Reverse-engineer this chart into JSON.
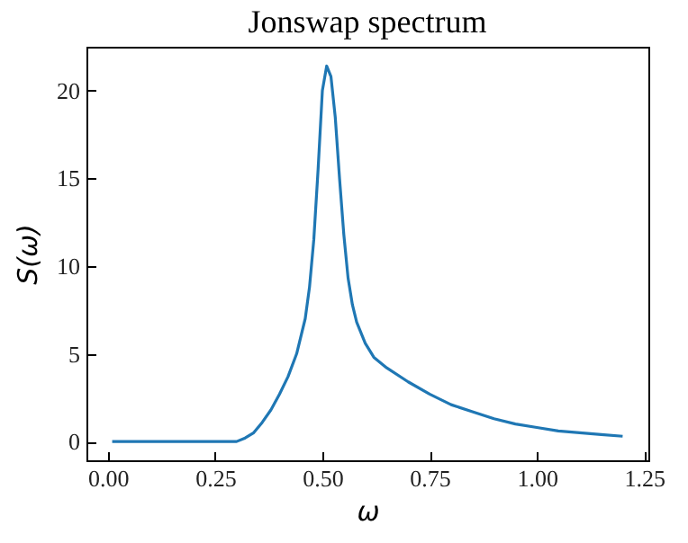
{
  "chart_data": {
    "type": "line",
    "title": "Jonswap spectrum",
    "xlabel": "ω",
    "ylabel": "S(ω)",
    "x": [
      0.01,
      0.1,
      0.2,
      0.25,
      0.3,
      0.32,
      0.34,
      0.36,
      0.38,
      0.4,
      0.42,
      0.44,
      0.46,
      0.47,
      0.48,
      0.49,
      0.5,
      0.51,
      0.52,
      0.53,
      0.54,
      0.55,
      0.56,
      0.57,
      0.58,
      0.6,
      0.62,
      0.65,
      0.7,
      0.75,
      0.8,
      0.85,
      0.9,
      0.95,
      1.0,
      1.05,
      1.1,
      1.15,
      1.2
    ],
    "series": [
      {
        "color": "#1f77b4",
        "values": [
          0,
          0,
          0,
          0,
          0,
          0.2,
          0.5,
          1.1,
          1.8,
          2.7,
          3.7,
          5.0,
          7.0,
          8.8,
          11.5,
          15.5,
          20.0,
          21.4,
          20.8,
          18.5,
          15.0,
          11.8,
          9.3,
          7.8,
          6.8,
          5.6,
          4.8,
          4.2,
          3.4,
          2.7,
          2.1,
          1.7,
          1.3,
          1.0,
          0.8,
          0.6,
          0.5,
          0.4,
          0.3
        ]
      }
    ],
    "xlim": [
      -0.05,
      1.26
    ],
    "ylim": [
      -1.07,
      22.5
    ],
    "xticks": [
      {
        "value": 0,
        "label": "0.00"
      },
      {
        "value": 0.25,
        "label": "0.25"
      },
      {
        "value": 0.5,
        "label": "0.50"
      },
      {
        "value": 0.75,
        "label": "0.75"
      },
      {
        "value": 1,
        "label": "1.00"
      },
      {
        "value": 1.25,
        "label": "1.25"
      }
    ],
    "yticks": [
      0,
      5,
      10,
      15,
      20
    ],
    "grid": false,
    "marker": "none",
    "line_style": "solid"
  }
}
